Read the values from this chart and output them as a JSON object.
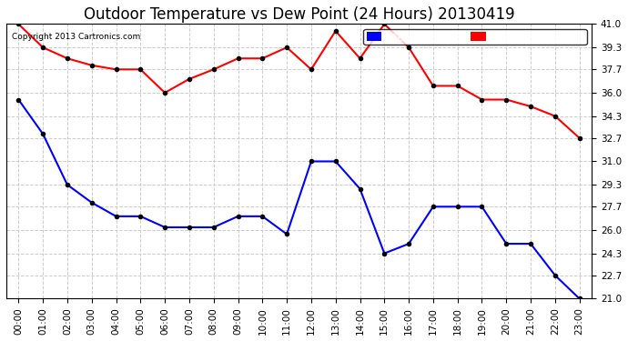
{
  "title": "Outdoor Temperature vs Dew Point (24 Hours) 20130419",
  "copyright": "Copyright 2013 Cartronics.com",
  "x_labels": [
    "00:00",
    "01:00",
    "02:00",
    "03:00",
    "04:00",
    "05:00",
    "06:00",
    "07:00",
    "08:00",
    "09:00",
    "10:00",
    "11:00",
    "12:00",
    "13:00",
    "14:00",
    "15:00",
    "16:00",
    "17:00",
    "18:00",
    "19:00",
    "20:00",
    "21:00",
    "22:00",
    "23:00"
  ],
  "temperature": [
    41.0,
    39.3,
    38.5,
    38.0,
    37.7,
    37.7,
    36.0,
    37.0,
    37.7,
    38.5,
    38.5,
    39.3,
    37.7,
    40.5,
    38.5,
    41.0,
    39.3,
    36.5,
    36.5,
    35.5,
    35.5,
    35.0,
    34.3,
    32.7
  ],
  "dew_point": [
    35.5,
    33.0,
    29.3,
    28.0,
    27.0,
    27.0,
    26.2,
    26.2,
    26.2,
    27.0,
    27.0,
    25.7,
    31.0,
    31.0,
    29.0,
    24.3,
    25.0,
    27.7,
    27.7,
    27.7,
    25.0,
    25.0,
    22.7,
    21.0
  ],
  "temp_color": "#ff0000",
  "dew_color": "#0000ff",
  "bg_color": "#ffffff",
  "plot_bg_color": "#ffffff",
  "grid_color": "#cccccc",
  "ylim_min": 21.0,
  "ylim_max": 41.0,
  "yticks": [
    21.0,
    22.7,
    24.3,
    26.0,
    27.7,
    29.3,
    31.0,
    32.7,
    34.3,
    36.0,
    37.7,
    39.3,
    41.0
  ],
  "legend_dew_bg": "#0000ff",
  "legend_temp_bg": "#ff0000",
  "marker": "o",
  "marker_size": 3,
  "marker_color": "#000000",
  "line_width": 1.5,
  "title_fontsize": 12,
  "tick_fontsize": 7.5,
  "legend_fontsize": 8
}
